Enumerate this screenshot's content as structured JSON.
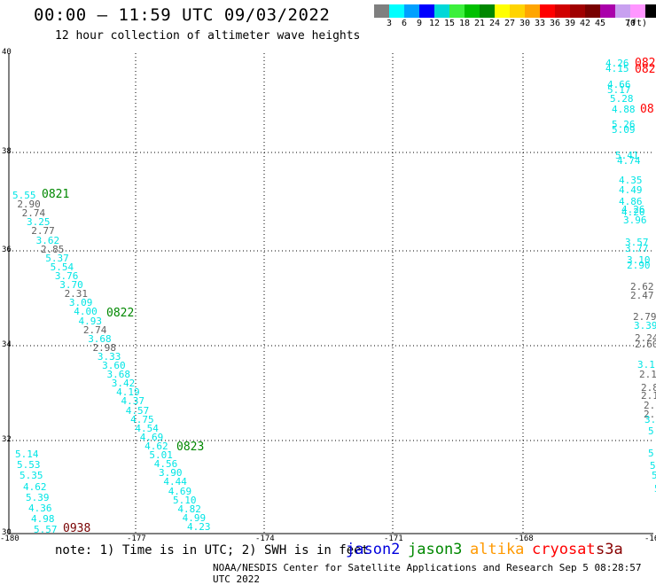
{
  "header": {
    "title": "00:00 – 11:59 UTC 09/03/2022",
    "subtitle": "12 hour collection of altimeter wave heights"
  },
  "colorbar": {
    "colors": [
      "#7f7f7f",
      "#00ffff",
      "#00a0ff",
      "#0000ff",
      "#00d8d8",
      "#3cf03c",
      "#00c000",
      "#008800",
      "#ffff00",
      "#ffd400",
      "#ffa500",
      "#ff0000",
      "#d00000",
      "#a00000",
      "#780000",
      "#aa00aa",
      "#c8a0f0",
      "#ff96ff",
      "#000000"
    ],
    "labels": [
      "3",
      "6",
      "9",
      "12",
      "15",
      "18",
      "21",
      "24",
      "27",
      "30",
      "33",
      "36",
      "39",
      "42",
      "45",
      "70"
    ],
    "unit": "(ft)"
  },
  "map": {
    "y_ticks": [
      "40",
      "38",
      "36",
      "34",
      "32",
      "30"
    ],
    "x_ticks": [
      "-180",
      "-177",
      "-174",
      "-171",
      "-168",
      "-16"
    ]
  },
  "observations": {
    "left_track": [
      {
        "v": "5.55",
        "c": "c"
      },
      {
        "v": "2.90",
        "c": "g"
      },
      {
        "v": "2.74",
        "c": "g"
      },
      {
        "v": "3.25",
        "c": "c"
      },
      {
        "v": "2.77",
        "c": "g"
      },
      {
        "v": "3.62",
        "c": "c"
      },
      {
        "v": "2.85",
        "c": "g"
      },
      {
        "v": "5.37",
        "c": "c"
      },
      {
        "v": "5.54",
        "c": "c"
      },
      {
        "v": "3.76",
        "c": "c"
      },
      {
        "v": "3.70",
        "c": "c"
      },
      {
        "v": "2.31",
        "c": "g"
      },
      {
        "v": "3.09",
        "c": "c"
      },
      {
        "v": "4.00",
        "c": "c"
      },
      {
        "v": "4.93",
        "c": "c"
      },
      {
        "v": "2.74",
        "c": "g"
      },
      {
        "v": "3.68",
        "c": "c"
      },
      {
        "v": "2.98",
        "c": "g"
      },
      {
        "v": "3.33",
        "c": "c"
      },
      {
        "v": "3.60",
        "c": "c"
      },
      {
        "v": "3.68",
        "c": "c"
      },
      {
        "v": "3.42",
        "c": "c"
      },
      {
        "v": "4.19",
        "c": "c"
      },
      {
        "v": "4.37",
        "c": "c"
      },
      {
        "v": "4.57",
        "c": "c"
      },
      {
        "v": "4.75",
        "c": "c"
      },
      {
        "v": "4.54",
        "c": "c"
      },
      {
        "v": "4.69",
        "c": "c"
      },
      {
        "v": "4.62",
        "c": "c"
      },
      {
        "v": "5.01",
        "c": "c"
      },
      {
        "v": "4.56",
        "c": "c"
      },
      {
        "v": "3.90",
        "c": "c"
      },
      {
        "v": "4.44",
        "c": "c"
      },
      {
        "v": "4.69",
        "c": "c"
      },
      {
        "v": "5.10",
        "c": "c"
      },
      {
        "v": "4.82",
        "c": "c"
      },
      {
        "v": "4.99",
        "c": "c"
      },
      {
        "v": "4.23",
        "c": "c"
      }
    ],
    "bottom_left": [
      {
        "v": "5.14",
        "c": "c"
      },
      {
        "v": "5.53",
        "c": "c"
      },
      {
        "v": "5.35",
        "c": "c"
      },
      {
        "v": "4.62",
        "c": "c"
      },
      {
        "v": "5.39",
        "c": "c"
      },
      {
        "v": "4.36",
        "c": "c"
      },
      {
        "v": "4.98",
        "c": "c"
      },
      {
        "v": "5.57",
        "c": "c"
      }
    ],
    "right_edge": [
      {
        "v": "4.26",
        "c": "c"
      },
      {
        "v": "4.15",
        "c": "c"
      },
      {
        "v": "4.66",
        "c": "c"
      },
      {
        "v": "5.17",
        "c": "c"
      },
      {
        "v": "5.28",
        "c": "c"
      },
      {
        "v": "4.88",
        "c": "c"
      },
      {
        "v": "5.26",
        "c": "c"
      },
      {
        "v": "5.09",
        "c": "c"
      },
      {
        "v": "5.41",
        "c": "c"
      },
      {
        "v": "4.74",
        "c": "c"
      },
      {
        "v": "4.35",
        "c": "c"
      },
      {
        "v": "4.49",
        "c": "c"
      },
      {
        "v": "4.86",
        "c": "c"
      },
      {
        "v": "4.26",
        "c": "c"
      },
      {
        "v": "4.20",
        "c": "c"
      },
      {
        "v": "3.96",
        "c": "c"
      },
      {
        "v": "3.57",
        "c": "c"
      },
      {
        "v": "3.77",
        "c": "c"
      },
      {
        "v": "3.10",
        "c": "c"
      },
      {
        "v": "2.90",
        "c": "c"
      },
      {
        "v": "2.62",
        "c": "g"
      },
      {
        "v": "2.47",
        "c": "g"
      },
      {
        "v": "2.79",
        "c": "g"
      },
      {
        "v": "3.39",
        "c": "c"
      },
      {
        "v": "2.24",
        "c": "g"
      },
      {
        "v": "2.60",
        "c": "g"
      },
      {
        "v": "3.1",
        "c": "c"
      },
      {
        "v": "2.1",
        "c": "g"
      },
      {
        "v": "2.8",
        "c": "g"
      },
      {
        "v": "2.1",
        "c": "g"
      },
      {
        "v": "2.6",
        "c": "g"
      },
      {
        "v": "2.5",
        "c": "g"
      },
      {
        "v": "3.",
        "c": "c"
      },
      {
        "v": "5.",
        "c": "c"
      },
      {
        "v": "5.",
        "c": "c"
      },
      {
        "v": "5.",
        "c": "c"
      },
      {
        "v": "5.",
        "c": "c"
      },
      {
        "v": "5.",
        "c": "c"
      }
    ],
    "time_labels": [
      {
        "t": "0821",
        "color": "#008800"
      },
      {
        "t": "0822",
        "color": "#008800"
      },
      {
        "t": "0823",
        "color": "#008800"
      },
      {
        "t": "0938",
        "color": "#780000"
      },
      {
        "t": "082",
        "color": "#ff0000"
      },
      {
        "t": "082",
        "color": "#ff0000"
      },
      {
        "t": "08",
        "color": "#ff0000"
      }
    ]
  },
  "footer": {
    "note": "note: 1) Time is in UTC; 2) SWH is in feet",
    "legend": [
      {
        "name": "jason2",
        "color": "#0000dd"
      },
      {
        "name": "jason3",
        "color": "#008800"
      },
      {
        "name": "altika",
        "color": "#ff9900"
      },
      {
        "name": "cryosat",
        "color": "#ff0000"
      },
      {
        "name": "s3a",
        "color": "#880000"
      }
    ],
    "credit": "NOAA/NESDIS Center for Satellite Applications and Research   Sep  5 08:28:57 UTC 2022"
  }
}
